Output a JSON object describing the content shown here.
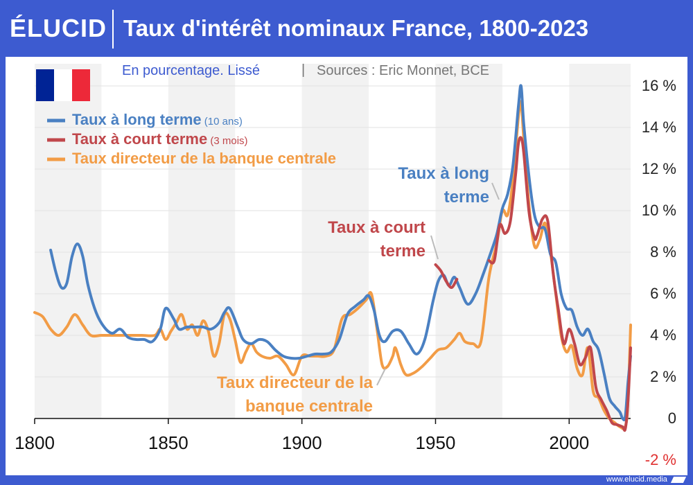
{
  "header": {
    "logo": "ÉLUCID",
    "title": "Taux d'intérêt nominaux France, 1800-2023"
  },
  "subtitle": {
    "left": "En pourcentage. Lissé",
    "separator": "|",
    "right": "Sources : Eric Monnet, BCE"
  },
  "flag": {
    "colors": [
      "#002395",
      "#ffffff",
      "#ed2939"
    ],
    "icon": "french-flag-icon"
  },
  "footer": {
    "text": "www.elucid.media",
    "icon": "elucid-mark-icon"
  },
  "colors": {
    "long": "#4a80c2",
    "short": "#c0474b",
    "policy": "#f29c46",
    "band": "#f2f2f2",
    "grid": "#e2e2e2",
    "axis": "#111111",
    "negative_tick": "#e03030"
  },
  "chart_data": {
    "type": "line",
    "title": "Taux d'intérêt nominaux France, 1800-2023",
    "xlim": [
      1800,
      2023
    ],
    "ylim": [
      -2,
      16
    ],
    "x_ticks": [
      1800,
      1850,
      1900,
      1950,
      2000
    ],
    "x_tick_labels": [
      "1800",
      "1850",
      "1900",
      "1950",
      "2000"
    ],
    "y_ticks": [
      -2,
      0,
      2,
      4,
      6,
      8,
      10,
      12,
      14,
      16
    ],
    "y_tick_labels": [
      "-2 %",
      "0",
      "2 %",
      "4 %",
      "6 %",
      "8 %",
      "10 %",
      "12 %",
      "14 %",
      "16 %"
    ],
    "y_axis_side": "right",
    "legend_position": "top-left",
    "alternating_bands": "25-year vertical bands",
    "legend": [
      {
        "label": "Taux à long terme",
        "note": "(10 ans)",
        "series": "long"
      },
      {
        "label": "Taux à court terme",
        "note": "(3 mois)",
        "series": "short"
      },
      {
        "label": "Taux directeur de la banque centrale",
        "note": "",
        "series": "policy"
      }
    ],
    "annotations": [
      {
        "series": "long",
        "lines": [
          "Taux à long",
          "terme"
        ]
      },
      {
        "series": "short",
        "lines": [
          "Taux à court",
          "terme"
        ]
      },
      {
        "series": "policy",
        "lines": [
          "Taux directeur de la",
          "banque centrale"
        ]
      }
    ],
    "series": [
      {
        "key": "long",
        "name": "Taux à long terme",
        "points": [
          [
            1806,
            8.1
          ],
          [
            1808,
            7.0
          ],
          [
            1810,
            6.3
          ],
          [
            1812,
            6.5
          ],
          [
            1814,
            7.8
          ],
          [
            1816,
            8.4
          ],
          [
            1818,
            7.8
          ],
          [
            1820,
            6.4
          ],
          [
            1823,
            5.1
          ],
          [
            1826,
            4.4
          ],
          [
            1829,
            4.1
          ],
          [
            1832,
            4.3
          ],
          [
            1835,
            3.9
          ],
          [
            1838,
            3.8
          ],
          [
            1841,
            3.8
          ],
          [
            1844,
            3.7
          ],
          [
            1847,
            4.3
          ],
          [
            1849,
            5.3
          ],
          [
            1852,
            4.8
          ],
          [
            1854,
            4.3
          ],
          [
            1857,
            4.4
          ],
          [
            1860,
            4.4
          ],
          [
            1863,
            4.4
          ],
          [
            1866,
            4.3
          ],
          [
            1869,
            4.6
          ],
          [
            1871,
            5.1
          ],
          [
            1873,
            5.3
          ],
          [
            1876,
            4.4
          ],
          [
            1878,
            3.8
          ],
          [
            1881,
            3.6
          ],
          [
            1884,
            3.8
          ],
          [
            1887,
            3.7
          ],
          [
            1890,
            3.3
          ],
          [
            1893,
            3.0
          ],
          [
            1896,
            2.9
          ],
          [
            1899,
            2.9
          ],
          [
            1902,
            3.0
          ],
          [
            1905,
            3.1
          ],
          [
            1908,
            3.1
          ],
          [
            1911,
            3.2
          ],
          [
            1914,
            3.8
          ],
          [
            1917,
            5.0
          ],
          [
            1920,
            5.4
          ],
          [
            1923,
            5.7
          ],
          [
            1925,
            5.9
          ],
          [
            1927,
            5.2
          ],
          [
            1929,
            4.0
          ],
          [
            1931,
            3.7
          ],
          [
            1934,
            4.2
          ],
          [
            1937,
            4.2
          ],
          [
            1940,
            3.6
          ],
          [
            1943,
            3.1
          ],
          [
            1946,
            3.8
          ],
          [
            1949,
            5.6
          ],
          [
            1951,
            6.6
          ],
          [
            1953,
            6.9
          ],
          [
            1955,
            6.4
          ],
          [
            1957,
            6.8
          ],
          [
            1959,
            6.3
          ],
          [
            1962,
            5.5
          ],
          [
            1965,
            6.0
          ],
          [
            1968,
            7.0
          ],
          [
            1971,
            8.1
          ],
          [
            1973,
            8.9
          ],
          [
            1975,
            10.1
          ],
          [
            1977,
            10.8
          ],
          [
            1979,
            12.2
          ],
          [
            1981,
            15.0
          ],
          [
            1982,
            16.0
          ],
          [
            1983,
            14.2
          ],
          [
            1985,
            11.6
          ],
          [
            1987,
            9.8
          ],
          [
            1989,
            9.2
          ],
          [
            1991,
            9.1
          ],
          [
            1993,
            7.9
          ],
          [
            1995,
            7.5
          ],
          [
            1997,
            6.0
          ],
          [
            1999,
            5.3
          ],
          [
            2001,
            5.2
          ],
          [
            2003,
            4.4
          ],
          [
            2005,
            4.0
          ],
          [
            2007,
            4.3
          ],
          [
            2009,
            3.7
          ],
          [
            2011,
            3.3
          ],
          [
            2013,
            2.2
          ],
          [
            2015,
            1.0
          ],
          [
            2017,
            0.6
          ],
          [
            2019,
            0.3
          ],
          [
            2020,
            0.0
          ],
          [
            2021,
            0.1
          ],
          [
            2022,
            1.7
          ],
          [
            2023,
            3.0
          ]
        ]
      },
      {
        "key": "short",
        "name": "Taux à court terme",
        "points": [
          [
            1950,
            7.4
          ],
          [
            1952,
            7.1
          ],
          [
            1954,
            6.6
          ],
          [
            1956,
            6.3
          ],
          [
            1958,
            6.7
          ]
        ]
      },
      {
        "key": "short",
        "name": "Taux à court terme",
        "points": [
          [
            1970,
            7.6
          ],
          [
            1972,
            7.6
          ],
          [
            1974,
            9.3
          ],
          [
            1976,
            8.9
          ],
          [
            1978,
            9.5
          ],
          [
            1980,
            11.8
          ],
          [
            1981,
            13.2
          ],
          [
            1982,
            13.5
          ],
          [
            1983,
            12.8
          ],
          [
            1985,
            9.9
          ],
          [
            1987,
            8.7
          ],
          [
            1988,
            8.8
          ],
          [
            1990,
            9.6
          ],
          [
            1992,
            9.5
          ],
          [
            1994,
            7.0
          ],
          [
            1996,
            5.2
          ],
          [
            1998,
            3.6
          ],
          [
            2000,
            4.3
          ],
          [
            2002,
            3.6
          ],
          [
            2004,
            2.6
          ],
          [
            2006,
            2.9
          ],
          [
            2008,
            3.4
          ],
          [
            2010,
            1.5
          ],
          [
            2012,
            0.9
          ],
          [
            2014,
            0.4
          ],
          [
            2016,
            -0.2
          ],
          [
            2018,
            -0.3
          ],
          [
            2020,
            -0.4
          ],
          [
            2021,
            -0.5
          ],
          [
            2022,
            0.8
          ],
          [
            2023,
            3.4
          ]
        ]
      },
      {
        "key": "policy",
        "name": "Taux directeur de la banque centrale",
        "points": [
          [
            1800,
            5.1
          ],
          [
            1803,
            4.9
          ],
          [
            1806,
            4.3
          ],
          [
            1809,
            4.0
          ],
          [
            1812,
            4.4
          ],
          [
            1815,
            5.0
          ],
          [
            1818,
            4.5
          ],
          [
            1821,
            4.0
          ],
          [
            1825,
            4.0
          ],
          [
            1830,
            4.0
          ],
          [
            1835,
            4.0
          ],
          [
            1840,
            4.0
          ],
          [
            1845,
            4.0
          ],
          [
            1847,
            4.3
          ],
          [
            1849,
            3.8
          ],
          [
            1851,
            4.2
          ],
          [
            1853,
            4.6
          ],
          [
            1855,
            5.0
          ],
          [
            1857,
            4.3
          ],
          [
            1859,
            4.5
          ],
          [
            1861,
            4.0
          ],
          [
            1863,
            4.7
          ],
          [
            1865,
            4.2
          ],
          [
            1867,
            3.0
          ],
          [
            1869,
            3.6
          ],
          [
            1871,
            5.0
          ],
          [
            1873,
            4.8
          ],
          [
            1875,
            3.8
          ],
          [
            1877,
            2.7
          ],
          [
            1879,
            3.2
          ],
          [
            1881,
            3.6
          ],
          [
            1883,
            3.2
          ],
          [
            1885,
            3.0
          ],
          [
            1888,
            2.9
          ],
          [
            1891,
            3.0
          ],
          [
            1894,
            2.6
          ],
          [
            1897,
            2.1
          ],
          [
            1900,
            3.0
          ],
          [
            1903,
            3.0
          ],
          [
            1906,
            3.0
          ],
          [
            1909,
            3.0
          ],
          [
            1912,
            3.3
          ],
          [
            1915,
            4.8
          ],
          [
            1918,
            5.0
          ],
          [
            1921,
            5.3
          ],
          [
            1924,
            5.7
          ],
          [
            1926,
            6.0
          ],
          [
            1928,
            4.4
          ],
          [
            1930,
            2.6
          ],
          [
            1932,
            2.5
          ],
          [
            1934,
            3.0
          ],
          [
            1935,
            3.4
          ],
          [
            1937,
            2.6
          ],
          [
            1939,
            2.1
          ],
          [
            1942,
            2.2
          ],
          [
            1945,
            2.5
          ],
          [
            1948,
            2.9
          ],
          [
            1951,
            3.3
          ],
          [
            1954,
            3.4
          ],
          [
            1957,
            3.8
          ],
          [
            1959,
            4.1
          ],
          [
            1961,
            3.7
          ],
          [
            1964,
            3.6
          ],
          [
            1967,
            3.7
          ],
          [
            1970,
            6.8
          ],
          [
            1973,
            8.5
          ],
          [
            1975,
            10.0
          ],
          [
            1977,
            9.8
          ],
          [
            1979,
            11.5
          ],
          [
            1981,
            14.5
          ],
          [
            1982,
            15.2
          ],
          [
            1983,
            13.5
          ],
          [
            1985,
            10.2
          ],
          [
            1987,
            8.3
          ],
          [
            1989,
            8.6
          ],
          [
            1991,
            9.4
          ],
          [
            1993,
            8.0
          ],
          [
            1995,
            6.0
          ],
          [
            1997,
            4.0
          ],
          [
            1999,
            3.2
          ],
          [
            2001,
            3.5
          ],
          [
            2003,
            2.4
          ],
          [
            2005,
            2.1
          ],
          [
            2007,
            3.4
          ],
          [
            2009,
            1.3
          ],
          [
            2011,
            1.0
          ],
          [
            2013,
            0.4
          ],
          [
            2015,
            0.0
          ],
          [
            2017,
            -0.2
          ],
          [
            2019,
            -0.4
          ],
          [
            2021,
            -0.4
          ],
          [
            2022,
            0.8
          ],
          [
            2023,
            4.5
          ]
        ]
      }
    ]
  }
}
